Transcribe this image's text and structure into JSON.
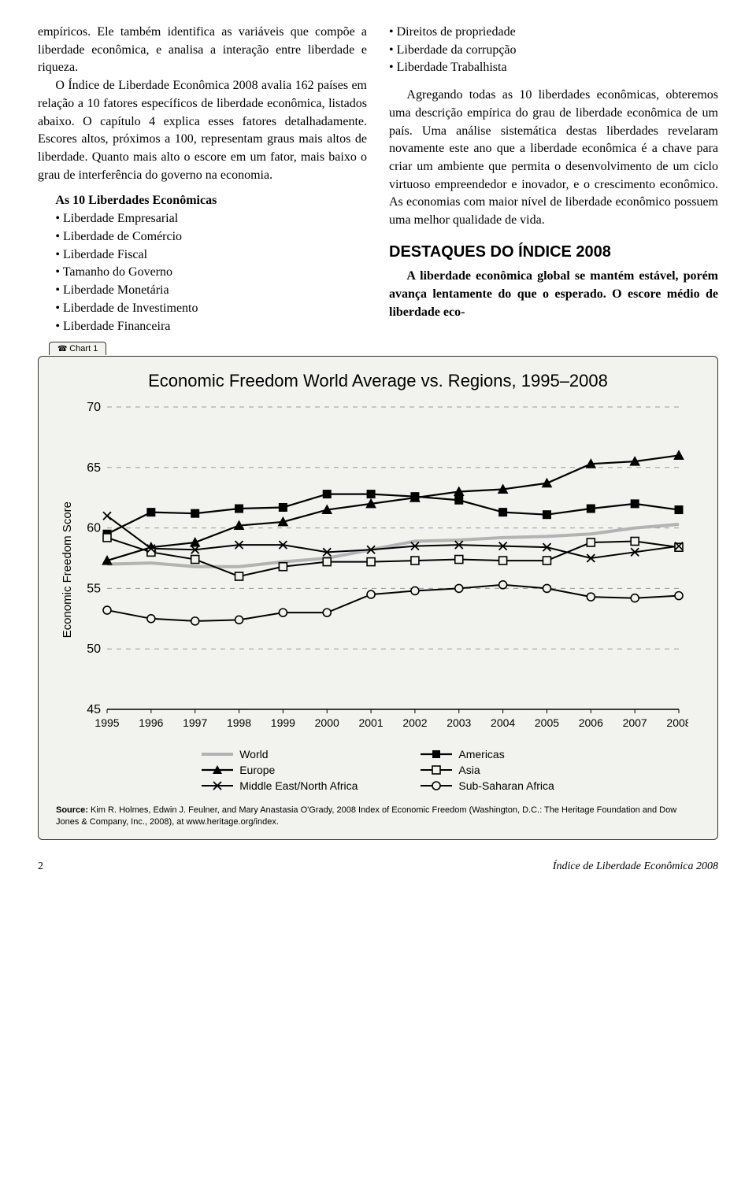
{
  "left_col": {
    "p1": "empíricos. Ele também identifica as variáveis que compõe a liberdade econômica, e analisa a interação entre liberdade e riqueza.",
    "p2": "O Índice de Liberdade Econômica 2008 avalia 162 países em relação a 10 fatores específicos de liberdade econômica, listados abaixo. O capítulo 4 explica esses fatores detalhadamente. Escores altos, próximos a 100, representam graus mais altos de liberdade. Quanto mais alto o escore em um fator, mais baixo o grau de interferência do governo na economia.",
    "list_heading": "As 10 Liberdades Econômicas",
    "bullets": [
      "Liberdade Empresarial",
      "Liberdade de Comércio",
      "Liberdade Fiscal",
      "Tamanho do Governo",
      "Liberdade Monetária",
      "Liberdade de Investimento",
      "Liberdade Financeira"
    ]
  },
  "right_col": {
    "bullets": [
      "Direitos de propriedade",
      "Liberdade da corrupção",
      "Liberdade Trabalhista"
    ],
    "p1": "Agregando todas as 10 liberdades econômicas, obteremos uma descrição empírica do grau de liberdade econômica de um país. Uma análise sistemática destas liberdades revelaram novamente este ano que a liberdade econômica é a chave para criar um ambiente que permita o desenvolvimento de um ciclo virtuoso empreendedor e inovador, e o crescimento econômico. As economias com maior nível de liberdade econômico possuem uma melhor qualidade de vida.",
    "heading": "DESTAQUES DO ÍNDICE 2008",
    "p2": "A liberdade econômica global se mantém estável, porém avança lentamente do que o esperado. O escore médio de liberdade eco-"
  },
  "chart": {
    "tab": "Chart 1",
    "title": "Economic Freedom World Average vs. Regions, 1995–2008",
    "ylabel": "Economic Freedom Score",
    "xticks": [
      1995,
      1996,
      1997,
      1998,
      1999,
      2000,
      2001,
      2002,
      2003,
      2004,
      2005,
      2006,
      2007,
      2008
    ],
    "yticks": [
      45,
      50,
      55,
      60,
      65,
      70
    ],
    "ylim": [
      45,
      70
    ],
    "grid_color": "#999999",
    "bg": "#f2f2ef",
    "series": [
      {
        "name": "World",
        "label": "World",
        "color": "#b3b3b3",
        "width": 4,
        "marker": "none",
        "values": [
          57.0,
          57.1,
          56.8,
          56.8,
          57.2,
          57.5,
          58.2,
          58.9,
          59.0,
          59.2,
          59.3,
          59.5,
          60.0,
          60.3
        ]
      },
      {
        "name": "Americas",
        "label": "Americas",
        "color": "#000000",
        "width": 2.2,
        "marker": "square-filled",
        "values": [
          59.5,
          61.3,
          61.2,
          61.6,
          61.7,
          62.8,
          62.8,
          62.6,
          62.3,
          61.3,
          61.1,
          61.6,
          62.0,
          61.5
        ]
      },
      {
        "name": "Europe",
        "label": "Europe",
        "color": "#000000",
        "width": 2.2,
        "marker": "triangle-filled",
        "values": [
          57.3,
          58.4,
          58.8,
          60.2,
          60.5,
          61.5,
          62.0,
          62.5,
          63.0,
          63.2,
          63.7,
          65.3,
          65.5,
          66.0
        ]
      },
      {
        "name": "Asia",
        "label": "Asia",
        "color": "#000000",
        "width": 2.0,
        "marker": "square-open",
        "values": [
          59.2,
          58.0,
          57.4,
          56.0,
          56.8,
          57.2,
          57.2,
          57.3,
          57.4,
          57.3,
          57.3,
          58.8,
          58.9,
          58.4
        ]
      },
      {
        "name": "Middle East/North Africa",
        "label": "Middle East/North Africa",
        "color": "#000000",
        "width": 2.0,
        "marker": "x",
        "values": [
          61.0,
          58.3,
          58.2,
          58.6,
          58.6,
          58.0,
          58.2,
          58.5,
          58.6,
          58.5,
          58.4,
          57.5,
          58.0,
          58.5
        ]
      },
      {
        "name": "Sub-Saharan Africa",
        "label": "Sub-Saharan Africa",
        "color": "#000000",
        "width": 2.0,
        "marker": "circle-open",
        "values": [
          53.2,
          52.5,
          52.3,
          52.4,
          53.0,
          53.0,
          54.5,
          54.8,
          55.0,
          55.3,
          55.0,
          54.3,
          54.2,
          54.4
        ]
      }
    ],
    "legend_order": [
      "World",
      "Americas",
      "Europe",
      "Asia",
      "Middle East/North Africa",
      "Sub-Saharan Africa"
    ],
    "source_label": "Source:",
    "source_text": " Kim R. Holmes, Edwin J. Feulner, and Mary Anastasia O'Grady, 2008 Index of Economic Freedom (Washington, D.C.: The Heritage Foundation and Dow Jones & Company, Inc., 2008), at www.heritage.org/index."
  },
  "footer": {
    "page": "2",
    "title": "Índice de Liberdade Econômica 2008"
  }
}
